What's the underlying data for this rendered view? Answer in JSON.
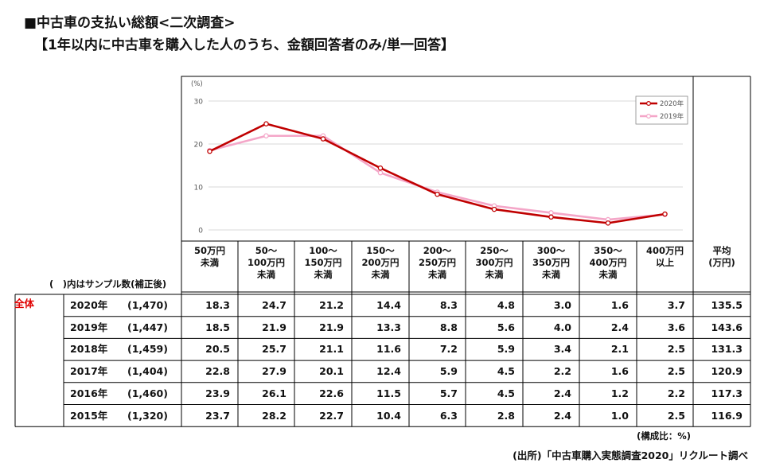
{
  "title": "■中古車の支払い総額<二次調査>",
  "subtitle": "【1年以内に中古車を購入した人のうち、金額回答者のみ/単一回答】",
  "chart_data": {
    "type": "line",
    "ylabel": "(%)",
    "ylim": [
      0,
      30
    ],
    "yticks": [
      "0",
      "10",
      "20",
      "30"
    ],
    "grid": true,
    "legend_position": "top-right",
    "categories": [
      "50万円未満",
      "50～100万円未満",
      "100～150万円未満",
      "150～200万円未満",
      "200～250万円未満",
      "250～300万円未満",
      "300～350万円未満",
      "350～400万円未満",
      "400万円以上"
    ],
    "series": [
      {
        "name": "2020年",
        "color": "#c00000",
        "values": [
          18.3,
          24.7,
          21.2,
          14.4,
          8.3,
          4.8,
          3.0,
          1.6,
          3.7
        ]
      },
      {
        "name": "2019年",
        "color": "#f4a6c8",
        "values": [
          18.5,
          21.9,
          21.9,
          13.3,
          8.8,
          5.6,
          4.0,
          2.4,
          3.6
        ]
      }
    ]
  },
  "table": {
    "sample_note": "(　)内はサンプル数(補正後)",
    "total_label": "全体",
    "columns": [
      [
        "50万円",
        "未満"
      ],
      [
        "50～",
        "100万円",
        "未満"
      ],
      [
        "100～",
        "150万円",
        "未満"
      ],
      [
        "150～",
        "200万円",
        "未満"
      ],
      [
        "200～",
        "250万円",
        "未満"
      ],
      [
        "250～",
        "300万円",
        "未満"
      ],
      [
        "300～",
        "350万円",
        "未満"
      ],
      [
        "350～",
        "400万円",
        "未満"
      ],
      [
        "400万円",
        "以上"
      ],
      [
        "平均",
        "(万円)"
      ]
    ],
    "rows": [
      {
        "year": "2020年",
        "n": "(1,470)",
        "values": [
          "18.3",
          "24.7",
          "21.2",
          "14.4",
          "8.3",
          "4.8",
          "3.0",
          "1.6",
          "3.7",
          "135.5"
        ]
      },
      {
        "year": "2019年",
        "n": "(1,447)",
        "values": [
          "18.5",
          "21.9",
          "21.9",
          "13.3",
          "8.8",
          "5.6",
          "4.0",
          "2.4",
          "3.6",
          "143.6"
        ]
      },
      {
        "year": "2018年",
        "n": "(1,459)",
        "values": [
          "20.5",
          "25.7",
          "21.1",
          "11.6",
          "7.2",
          "5.9",
          "3.4",
          "2.1",
          "2.5",
          "131.3"
        ]
      },
      {
        "year": "2017年",
        "n": "(1,404)",
        "values": [
          "22.8",
          "27.9",
          "20.1",
          "12.4",
          "5.9",
          "4.5",
          "2.2",
          "1.6",
          "2.5",
          "120.9"
        ]
      },
      {
        "year": "2016年",
        "n": "(1,460)",
        "values": [
          "23.9",
          "26.1",
          "22.6",
          "11.5",
          "5.7",
          "4.5",
          "2.4",
          "1.2",
          "2.2",
          "117.3"
        ]
      },
      {
        "year": "2015年",
        "n": "(1,320)",
        "values": [
          "23.7",
          "28.2",
          "22.7",
          "10.4",
          "6.3",
          "2.8",
          "2.4",
          "1.0",
          "2.5",
          "116.9"
        ]
      }
    ]
  },
  "notes": {
    "ratio": "(構成比：%)",
    "source": "(出所)「中古車購入実態調査2020」リクルート調べ"
  }
}
